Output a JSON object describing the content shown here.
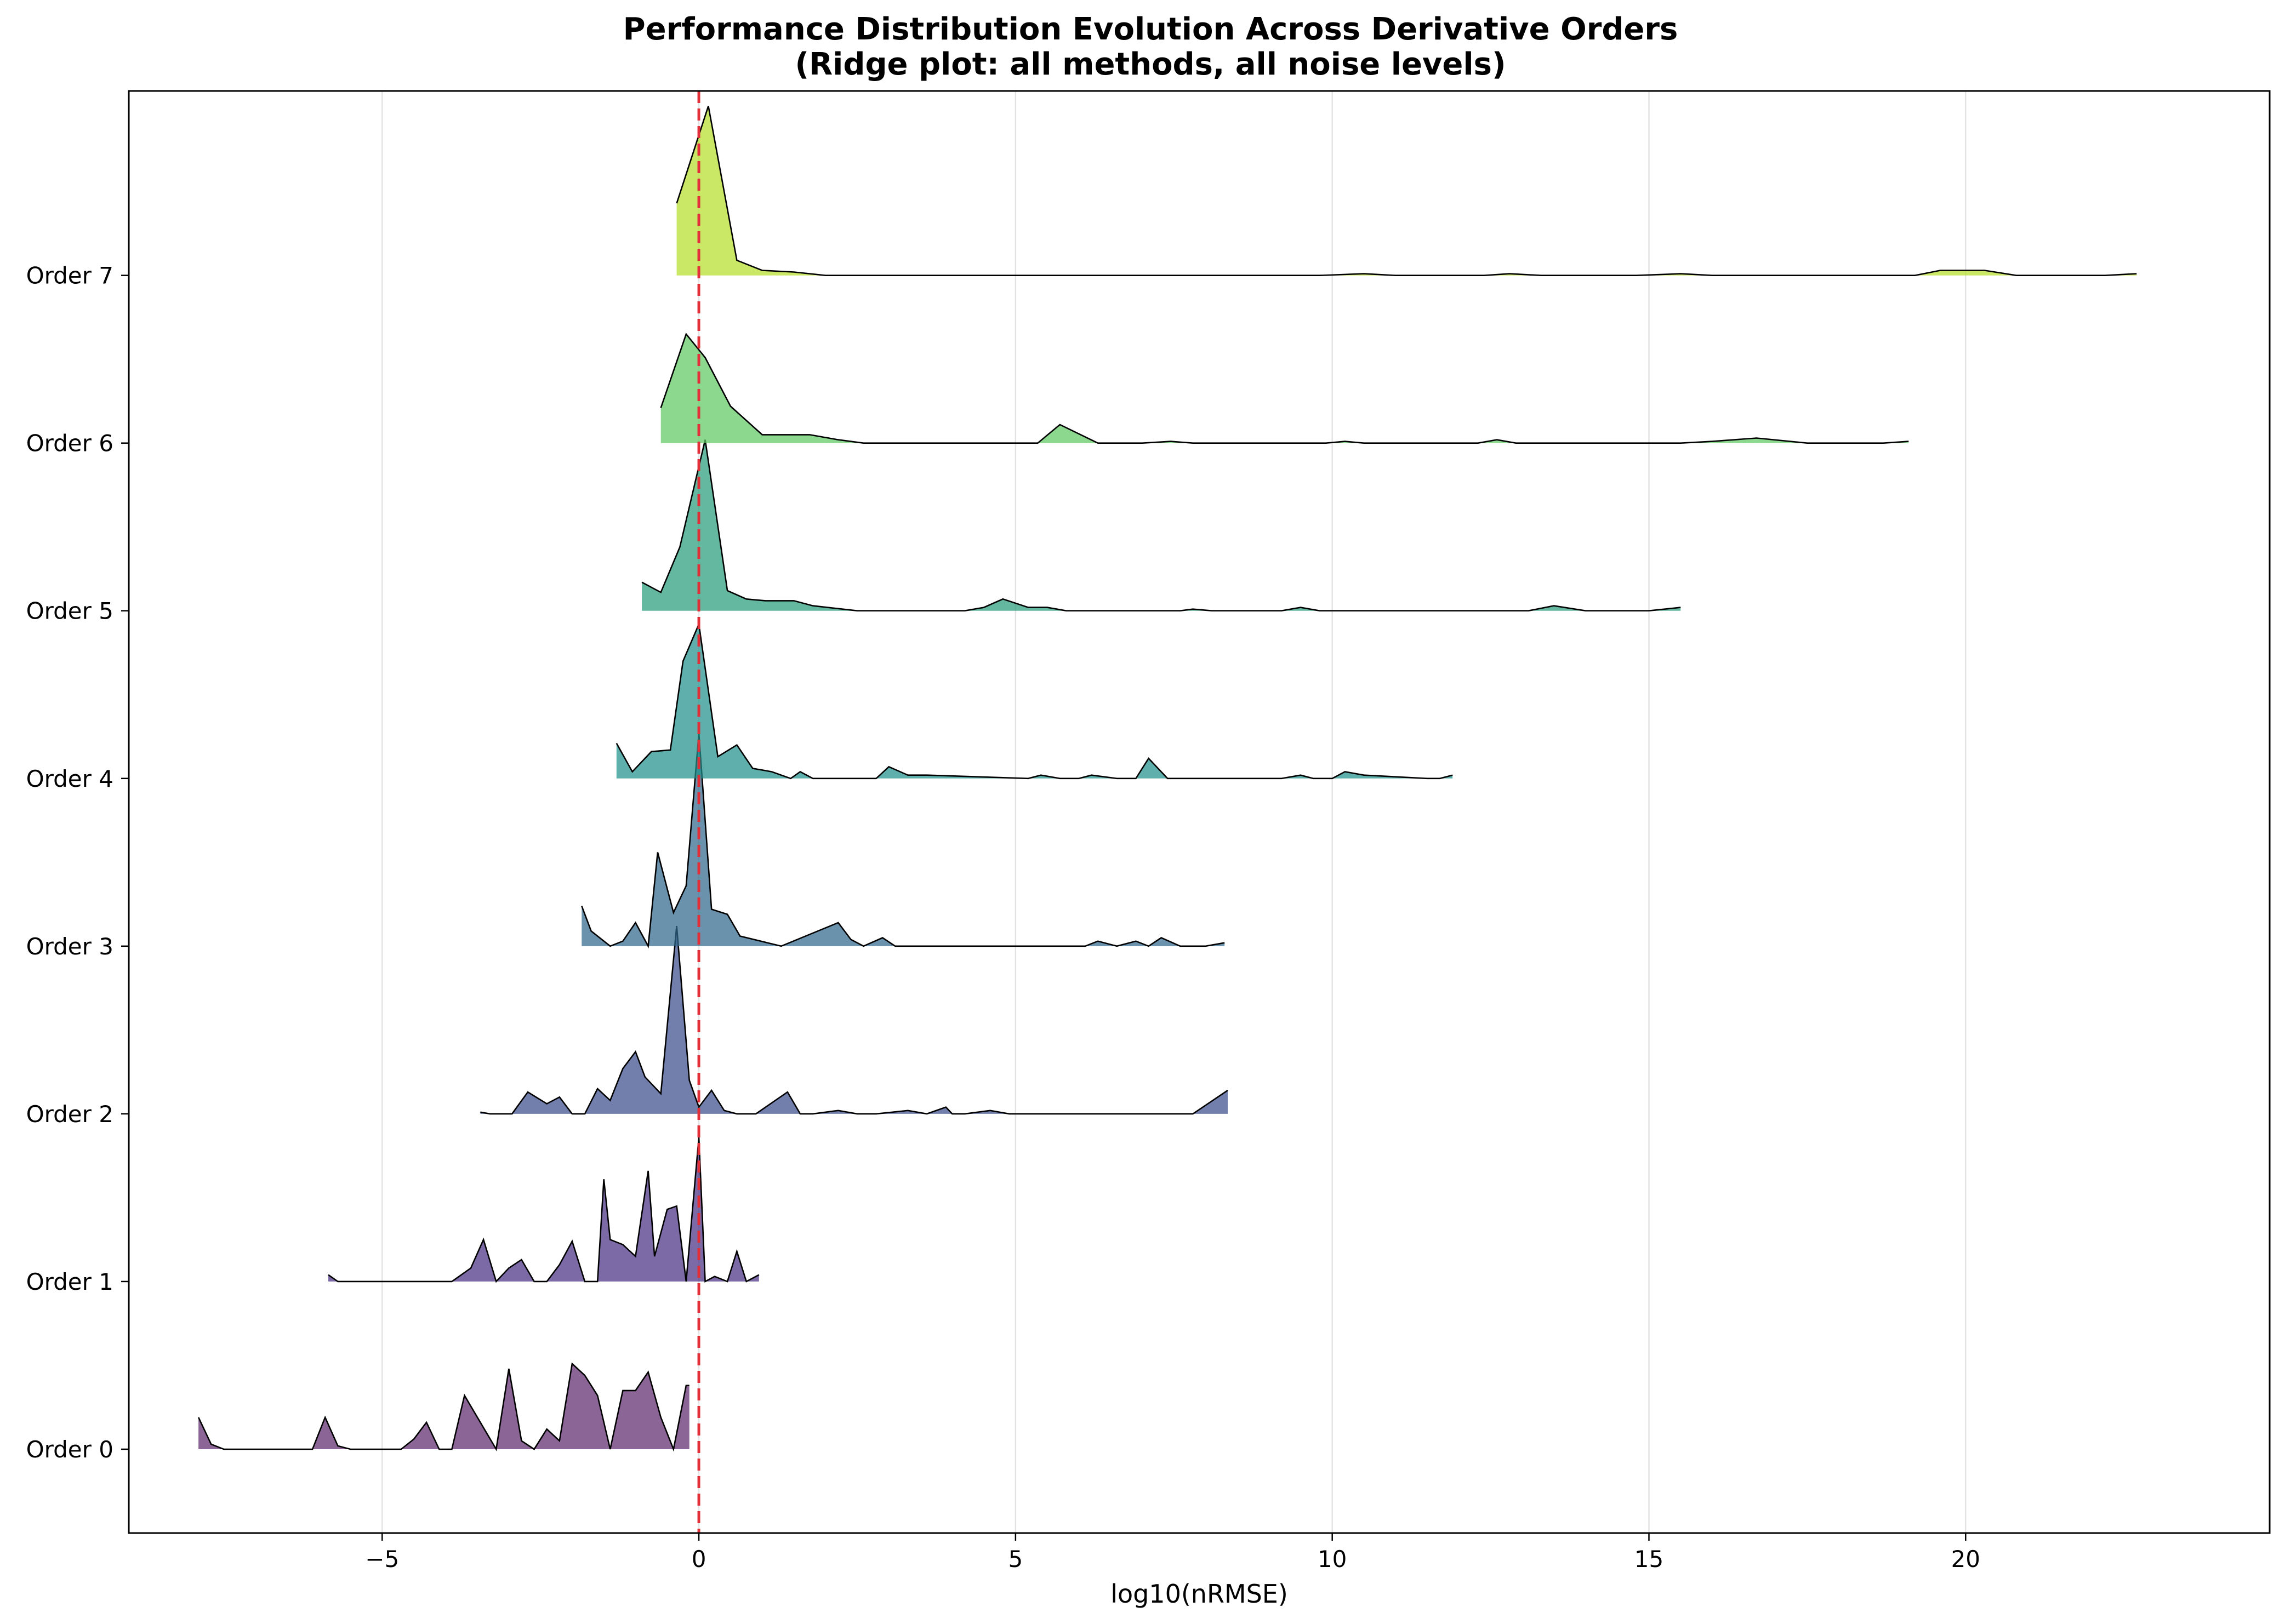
{
  "chart_data": {
    "type": "area",
    "title": "Performance Distribution Evolution Across Derivative Orders",
    "subtitle": "(Ridge plot: all methods, all noise levels)",
    "xlabel": "log10(nRMSE)",
    "ylabel": "",
    "xlim": [
      -9.0,
      24.8
    ],
    "ylim": [
      -0.5,
      8.1
    ],
    "x_ticks": [
      -5,
      0,
      5,
      10,
      15,
      20
    ],
    "x_tick_labels": [
      "−5",
      "0",
      "5",
      "10",
      "15",
      "20"
    ],
    "grid": "vertical",
    "reference_line": {
      "x": 0,
      "style": "dashed",
      "color": "#e0303a"
    },
    "series": [
      {
        "name": "Order 0",
        "baseline": 0,
        "color": "#5d2a6e",
        "x": [
          -7.9,
          -7.7,
          -7.5,
          -6.1,
          -5.9,
          -5.7,
          -5.5,
          -4.7,
          -4.5,
          -4.3,
          -4.1,
          -3.9,
          -3.7,
          -3.2,
          -3.0,
          -2.8,
          -2.6,
          -2.4,
          -2.2,
          -2.0,
          -1.8,
          -1.6,
          -1.4,
          -1.2,
          -1.0,
          -0.8,
          -0.6,
          -0.4,
          -0.2,
          -0.15
        ],
        "y": [
          0.19,
          0.03,
          0.0,
          0.0,
          0.19,
          0.02,
          0.0,
          0.0,
          0.06,
          0.16,
          0.0,
          0.0,
          0.32,
          0.0,
          0.48,
          0.05,
          0.0,
          0.12,
          0.05,
          0.51,
          0.44,
          0.32,
          0.0,
          0.35,
          0.35,
          0.46,
          0.19,
          0.0,
          0.38,
          0.38
        ]
      },
      {
        "name": "Order 1",
        "baseline": 1,
        "color": "#4a3085",
        "x": [
          -5.85,
          -5.7,
          -3.9,
          -3.6,
          -3.4,
          -3.2,
          -3.0,
          -2.8,
          -2.6,
          -2.4,
          -2.2,
          -2.0,
          -1.8,
          -1.6,
          -1.5,
          -1.4,
          -1.2,
          -1.0,
          -0.8,
          -0.7,
          -0.5,
          -0.35,
          -0.2,
          0.0,
          0.1,
          0.25,
          0.45,
          0.6,
          0.75,
          0.95
        ],
        "y": [
          0.04,
          0.0,
          0.0,
          0.08,
          0.25,
          0.0,
          0.08,
          0.13,
          0.0,
          0.0,
          0.1,
          0.24,
          0.0,
          0.0,
          0.61,
          0.25,
          0.22,
          0.15,
          0.66,
          0.15,
          0.43,
          0.45,
          0.0,
          0.86,
          0.0,
          0.03,
          0.0,
          0.18,
          0.0,
          0.04
        ]
      },
      {
        "name": "Order 2",
        "baseline": 2,
        "color": "#3b4e8c",
        "x": [
          -3.45,
          -3.3,
          -2.95,
          -2.7,
          -2.4,
          -2.2,
          -2.0,
          -1.8,
          -1.6,
          -1.4,
          -1.2,
          -1.0,
          -0.85,
          -0.6,
          -0.35,
          -0.15,
          0.0,
          0.2,
          0.4,
          0.6,
          0.9,
          1.4,
          1.6,
          1.8,
          2.2,
          2.5,
          2.8,
          3.3,
          3.6,
          3.9,
          4.0,
          4.2,
          4.6,
          4.9,
          5.2,
          7.8,
          8.35
        ],
        "y": [
          0.01,
          0.0,
          0.0,
          0.13,
          0.06,
          0.1,
          0.0,
          0.0,
          0.15,
          0.08,
          0.27,
          0.37,
          0.22,
          0.12,
          1.12,
          0.2,
          0.04,
          0.14,
          0.02,
          0.0,
          0.0,
          0.13,
          0.0,
          0.0,
          0.02,
          0.0,
          0.0,
          0.02,
          0.0,
          0.04,
          0.0,
          0.0,
          0.02,
          0.0,
          0.0,
          0.0,
          0.14
        ]
      },
      {
        "name": "Order 3",
        "baseline": 3,
        "color": "#31688e",
        "x": [
          -1.85,
          -1.7,
          -1.4,
          -1.2,
          -1.0,
          -0.8,
          -0.65,
          -0.4,
          -0.2,
          0.0,
          0.2,
          0.45,
          0.65,
          1.3,
          2.2,
          2.4,
          2.6,
          2.9,
          3.1,
          6.1,
          6.3,
          6.6,
          6.9,
          7.1,
          7.3,
          7.6,
          8.0,
          8.3
        ],
        "y": [
          0.24,
          0.09,
          0.0,
          0.03,
          0.14,
          0.0,
          0.56,
          0.2,
          0.36,
          1.27,
          0.22,
          0.19,
          0.06,
          0.0,
          0.14,
          0.04,
          0.0,
          0.05,
          0.0,
          0.0,
          0.03,
          0.0,
          0.03,
          0.0,
          0.05,
          0.0,
          0.0,
          0.02
        ]
      },
      {
        "name": "Order 4",
        "baseline": 4,
        "color": "#21918c",
        "x": [
          -1.3,
          -1.05,
          -0.75,
          -0.45,
          -0.25,
          0.0,
          0.3,
          0.6,
          0.85,
          1.15,
          1.45,
          1.6,
          1.8,
          2.8,
          3.0,
          3.3,
          3.6,
          5.2,
          5.4,
          5.7,
          6.0,
          6.2,
          6.6,
          6.9,
          7.1,
          7.4,
          7.7,
          9.2,
          9.5,
          9.7,
          10.0,
          10.2,
          10.5,
          11.5,
          11.7,
          11.9
        ],
        "y": [
          0.21,
          0.04,
          0.16,
          0.17,
          0.7,
          0.92,
          0.13,
          0.2,
          0.06,
          0.04,
          0.0,
          0.04,
          0.0,
          0.0,
          0.07,
          0.02,
          0.02,
          0.0,
          0.02,
          0.0,
          0.0,
          0.02,
          0.0,
          0.0,
          0.12,
          0.0,
          0.0,
          0.0,
          0.02,
          0.0,
          0.0,
          0.04,
          0.02,
          0.0,
          0.0,
          0.02
        ]
      },
      {
        "name": "Order 5",
        "baseline": 5,
        "color": "#2a9d7c",
        "x": [
          -0.9,
          -0.6,
          -0.3,
          0.1,
          0.45,
          0.75,
          1.05,
          1.5,
          1.8,
          2.5,
          4.2,
          4.5,
          4.8,
          5.2,
          5.5,
          5.8,
          7.6,
          7.8,
          8.1,
          9.2,
          9.5,
          9.8,
          13.1,
          13.5,
          14.0,
          15.0,
          15.5
        ],
        "y": [
          0.17,
          0.11,
          0.38,
          1.02,
          0.12,
          0.07,
          0.06,
          0.06,
          0.03,
          0.0,
          0.0,
          0.02,
          0.07,
          0.02,
          0.02,
          0.0,
          0.0,
          0.01,
          0.0,
          0.0,
          0.02,
          0.0,
          0.0,
          0.03,
          0.0,
          0.0,
          0.02
        ]
      },
      {
        "name": "Order 6",
        "baseline": 6,
        "color": "#5ec962",
        "x": [
          -0.6,
          -0.2,
          0.1,
          0.5,
          1.0,
          1.75,
          2.2,
          2.6,
          5.0,
          5.35,
          5.7,
          6.3,
          7.0,
          7.45,
          7.8,
          9.9,
          10.2,
          10.5,
          12.3,
          12.6,
          12.9,
          15.5,
          16.0,
          16.7,
          17.5,
          18.7,
          19.1
        ],
        "y": [
          0.21,
          0.65,
          0.51,
          0.22,
          0.05,
          0.05,
          0.02,
          0.0,
          0.0,
          0.0,
          0.11,
          0.0,
          0.0,
          0.01,
          0.0,
          0.0,
          0.01,
          0.0,
          0.0,
          0.02,
          0.0,
          0.0,
          0.01,
          0.03,
          0.0,
          0.0,
          0.01
        ]
      },
      {
        "name": "Order 7",
        "baseline": 7,
        "color": "#b5de2b",
        "x": [
          -0.35,
          0.15,
          0.6,
          1.0,
          1.5,
          2.0,
          9.8,
          10.5,
          11.0,
          12.4,
          12.8,
          13.3,
          14.8,
          15.5,
          16.0,
          19.2,
          19.6,
          20.3,
          20.8,
          22.2,
          22.7
        ],
        "y": [
          0.43,
          1.01,
          0.09,
          0.03,
          0.02,
          0.0,
          0.0,
          0.01,
          0.0,
          0.0,
          0.01,
          0.0,
          0.0,
          0.01,
          0.0,
          0.0,
          0.03,
          0.03,
          0.0,
          0.0,
          0.01
        ]
      }
    ],
    "y_tick_labels": [
      "Order 0",
      "Order 1",
      "Order 2",
      "Order 3",
      "Order 4",
      "Order 5",
      "Order 6",
      "Order 7"
    ]
  }
}
